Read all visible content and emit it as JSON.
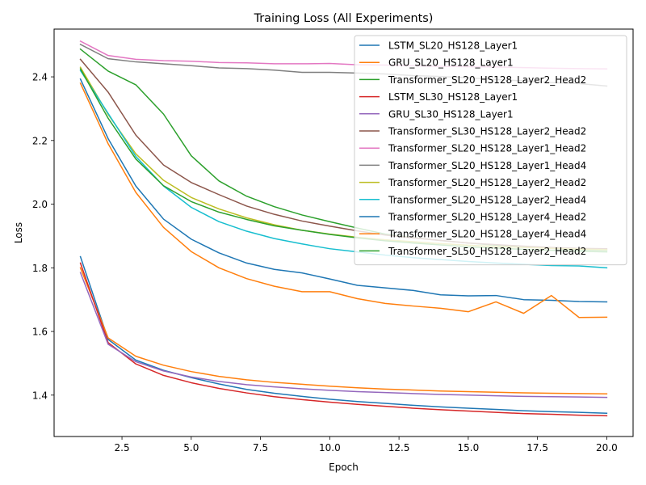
{
  "chart_data": {
    "type": "line",
    "title": "Training Loss (All Experiments)",
    "xlabel": "Epoch",
    "ylabel": "Loss",
    "xlim": [
      0.05,
      20.95
    ],
    "ylim": [
      1.27,
      2.55
    ],
    "xticks": [
      2.5,
      5.0,
      7.5,
      10.0,
      12.5,
      15.0,
      17.5,
      20.0
    ],
    "xtick_labels": [
      "2.5",
      "5.0",
      "7.5",
      "10.0",
      "12.5",
      "15.0",
      "17.5",
      "20.0"
    ],
    "yticks": [
      1.4,
      1.6,
      1.8,
      2.0,
      2.2,
      2.4
    ],
    "ytick_labels": [
      "1.4",
      "1.6",
      "1.8",
      "2.0",
      "2.2",
      "2.4"
    ],
    "grid": false,
    "legend_position": "top-right",
    "x": [
      1,
      2,
      3,
      4,
      5,
      6,
      7,
      8,
      9,
      10,
      11,
      12,
      13,
      14,
      15,
      16,
      17,
      18,
      19,
      20
    ],
    "series": [
      {
        "name": "LSTM_SL20_HS128_Layer1",
        "color": "#1f77b4",
        "values": [
          1.835,
          1.575,
          1.51,
          1.478,
          1.455,
          1.435,
          1.418,
          1.406,
          1.396,
          1.387,
          1.38,
          1.374,
          1.368,
          1.363,
          1.359,
          1.355,
          1.351,
          1.348,
          1.346,
          1.343
        ]
      },
      {
        "name": "GRU_SL20_HS128_Layer1",
        "color": "#ff7f0e",
        "values": [
          1.8,
          1.58,
          1.522,
          1.494,
          1.474,
          1.459,
          1.448,
          1.44,
          1.434,
          1.428,
          1.423,
          1.419,
          1.416,
          1.413,
          1.411,
          1.409,
          1.407,
          1.406,
          1.405,
          1.404
        ]
      },
      {
        "name": "Transformer_SL20_HS128_Layer2_Head2",
        "color": "#2ca02c",
        "values": [
          2.487,
          2.418,
          2.375,
          2.283,
          2.152,
          2.073,
          2.025,
          1.992,
          1.966,
          1.945,
          1.925,
          1.906,
          1.895,
          1.886,
          1.878,
          1.871,
          1.866,
          1.861,
          1.857,
          1.855
        ]
      },
      {
        "name": "LSTM_SL30_HS128_Layer1",
        "color": "#d62728",
        "values": [
          1.815,
          1.565,
          1.498,
          1.462,
          1.439,
          1.421,
          1.407,
          1.395,
          1.386,
          1.378,
          1.371,
          1.365,
          1.359,
          1.354,
          1.35,
          1.346,
          1.342,
          1.34,
          1.337,
          1.335
        ]
      },
      {
        "name": "GRU_SL30_HS128_Layer1",
        "color": "#9467bd",
        "values": [
          1.785,
          1.56,
          1.505,
          1.476,
          1.457,
          1.443,
          1.433,
          1.426,
          1.42,
          1.415,
          1.411,
          1.408,
          1.405,
          1.402,
          1.4,
          1.398,
          1.396,
          1.395,
          1.394,
          1.393
        ]
      },
      {
        "name": "Transformer_SL30_HS128_Layer2_Head2",
        "color": "#8c564b",
        "values": [
          2.455,
          2.352,
          2.217,
          2.123,
          2.068,
          2.03,
          1.994,
          1.968,
          1.947,
          1.931,
          1.916,
          1.903,
          1.894,
          1.886,
          1.878,
          1.873,
          1.868,
          1.864,
          1.861,
          1.86
        ]
      },
      {
        "name": "Transformer_SL20_HS128_Layer1_Head2",
        "color": "#e377c2",
        "values": [
          2.512,
          2.467,
          2.455,
          2.451,
          2.449,
          2.445,
          2.444,
          2.441,
          2.441,
          2.442,
          2.438,
          2.437,
          2.435,
          2.433,
          2.432,
          2.431,
          2.429,
          2.427,
          2.426,
          2.425
        ]
      },
      {
        "name": "Transformer_SL20_HS128_Layer1_Head4",
        "color": "#7f7f7f",
        "values": [
          2.502,
          2.457,
          2.447,
          2.441,
          2.435,
          2.428,
          2.426,
          2.421,
          2.414,
          2.414,
          2.412,
          2.409,
          2.404,
          2.401,
          2.397,
          2.392,
          2.387,
          2.382,
          2.379,
          2.371
        ]
      },
      {
        "name": "Transformer_SL20_HS128_Layer2_Head2",
        "color": "#bcbd22",
        "values": [
          2.43,
          2.282,
          2.158,
          2.075,
          2.021,
          1.985,
          1.957,
          1.935,
          1.918,
          1.906,
          1.896,
          1.888,
          1.882,
          1.876,
          1.871,
          1.867,
          1.864,
          1.861,
          1.859,
          1.857
        ]
      },
      {
        "name": "Transformer_SL20_HS128_Layer2_Head4",
        "color": "#17becf",
        "values": [
          2.42,
          2.285,
          2.15,
          2.057,
          1.99,
          1.945,
          1.915,
          1.892,
          1.875,
          1.86,
          1.85,
          1.84,
          1.832,
          1.826,
          1.82,
          1.815,
          1.811,
          1.807,
          1.806,
          1.8
        ]
      },
      {
        "name": "Transformer_SL20_HS128_Layer4_Head2",
        "color": "#1f77b4",
        "values": [
          2.393,
          2.206,
          2.057,
          1.953,
          1.89,
          1.847,
          1.815,
          1.795,
          1.784,
          1.765,
          1.745,
          1.737,
          1.729,
          1.715,
          1.712,
          1.713,
          1.7,
          1.698,
          1.694,
          1.693
        ]
      },
      {
        "name": "Transformer_SL20_HS128_Layer4_Head4",
        "color": "#ff7f0e",
        "values": [
          2.38,
          2.19,
          2.037,
          1.927,
          1.851,
          1.8,
          1.766,
          1.742,
          1.725,
          1.725,
          1.703,
          1.688,
          1.68,
          1.673,
          1.662,
          1.693,
          1.657,
          1.713,
          1.644,
          1.645
        ]
      },
      {
        "name": "Transformer_SL50_HS128_Layer2_Head2",
        "color": "#2ca02c",
        "values": [
          2.425,
          2.27,
          2.142,
          2.058,
          2.008,
          1.975,
          1.952,
          1.932,
          1.918,
          1.905,
          1.894,
          1.885,
          1.878,
          1.872,
          1.866,
          1.862,
          1.858,
          1.855,
          1.852,
          1.85
        ]
      }
    ]
  }
}
